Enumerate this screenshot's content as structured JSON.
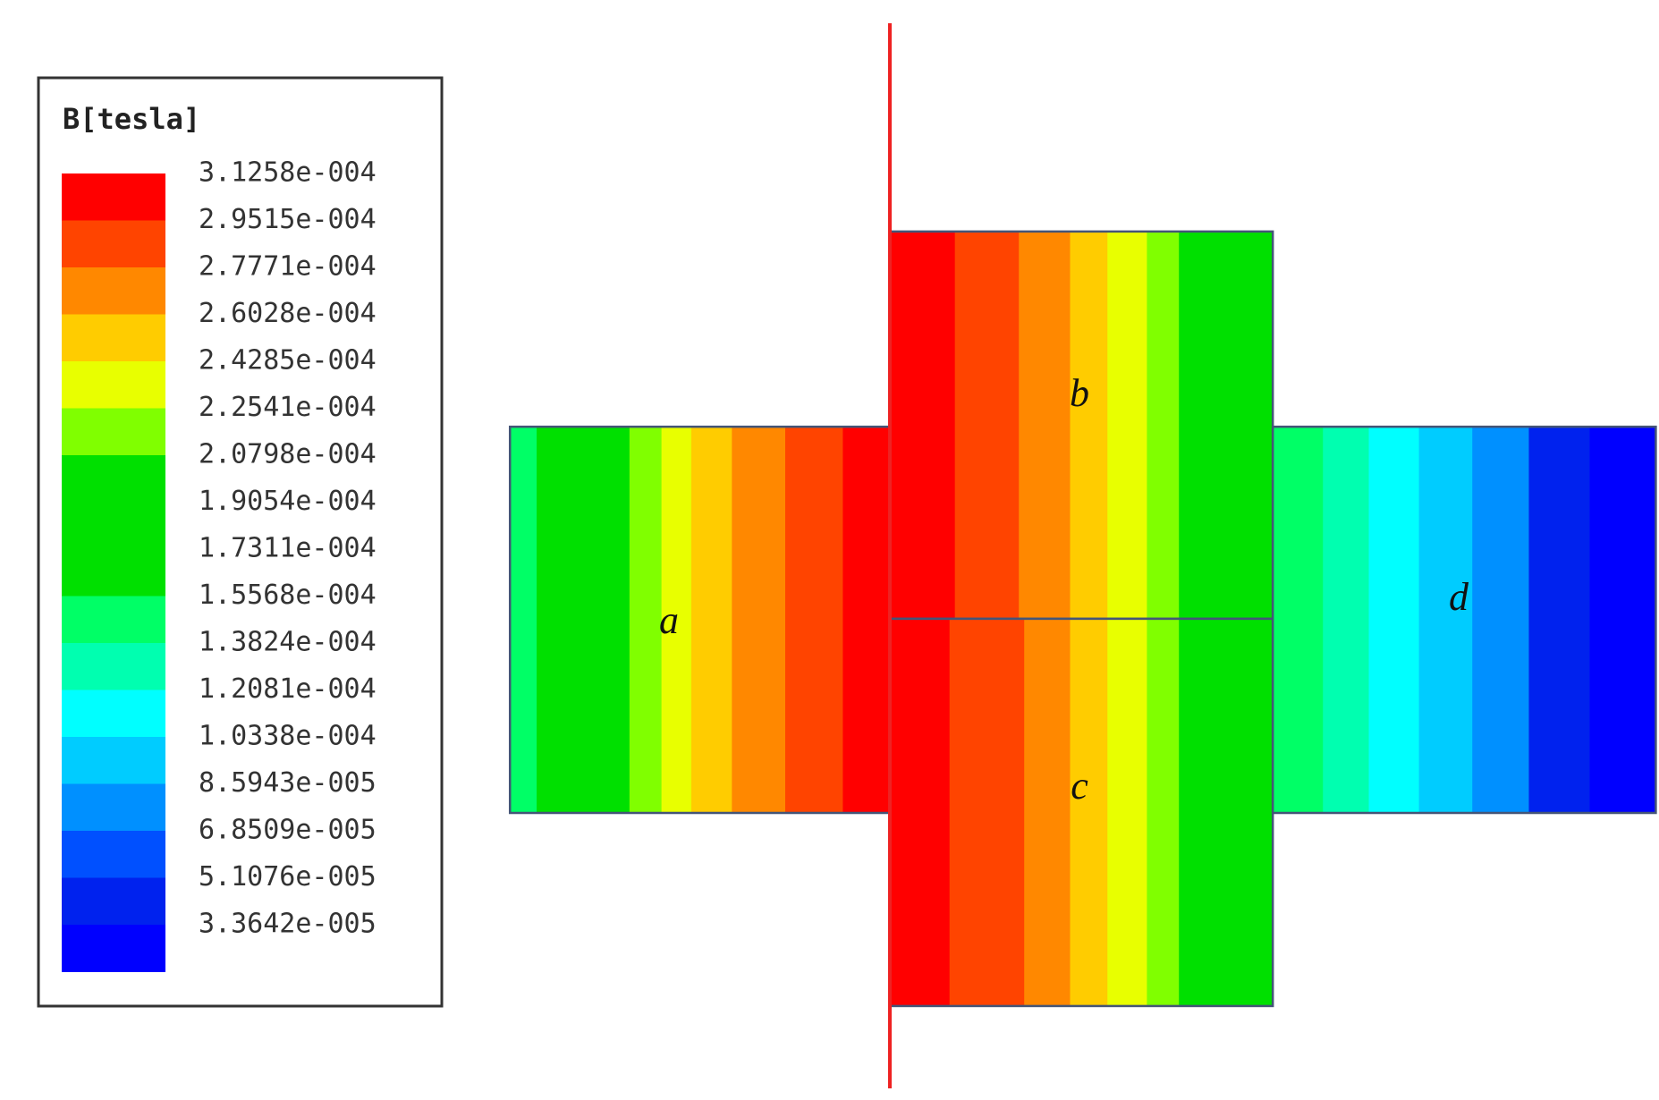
{
  "legend": {
    "title": "B[tesla]",
    "labels": [
      "3.1258e-004",
      "2.9515e-004",
      "2.7771e-004",
      "2.6028e-004",
      "2.4285e-004",
      "2.2541e-004",
      "2.0798e-004",
      "1.9054e-004",
      "1.7311e-004",
      "1.5568e-004",
      "1.3824e-004",
      "1.2081e-004",
      "1.0338e-004",
      "8.5943e-005",
      "6.8509e-005",
      "5.1076e-005",
      "3.3642e-005"
    ]
  },
  "regions": [
    "a",
    "b",
    "c",
    "d"
  ]
}
